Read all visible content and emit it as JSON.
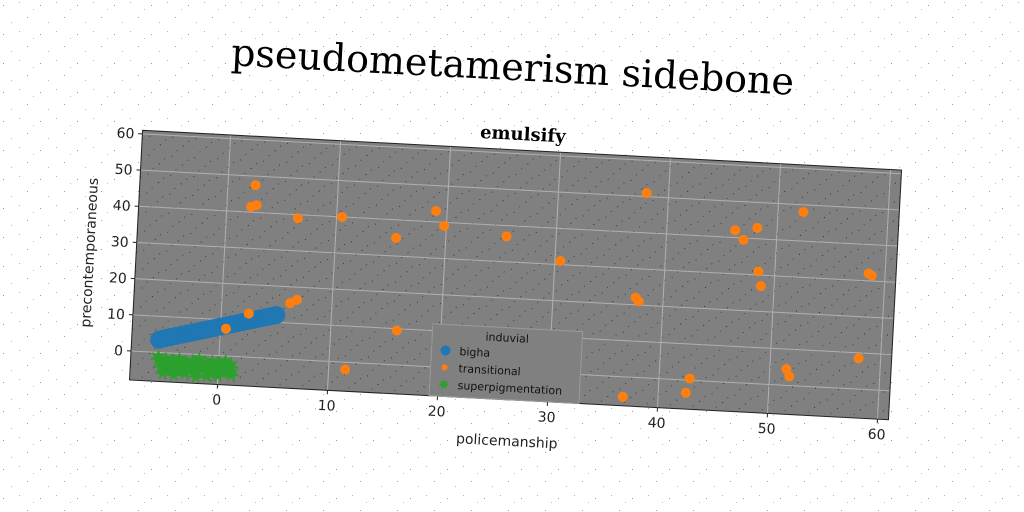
{
  "title": "pseudometamerism sidebone",
  "chart_data": {
    "type": "scatter",
    "title": "emulsify",
    "xlabel": "policemanship",
    "ylabel": "precontemporaneous",
    "xlim": [
      -8,
      61
    ],
    "ylim": [
      -8,
      61
    ],
    "xticks": [
      0,
      10,
      20,
      30,
      40,
      50,
      60
    ],
    "yticks": [
      0,
      10,
      20,
      30,
      40,
      50,
      60
    ],
    "grid": true,
    "legend": {
      "title": "induvial",
      "placement": "lower-center",
      "entries": [
        "bigha",
        "transitional",
        "superpigmentation"
      ]
    },
    "series": [
      {
        "name": "bigha",
        "marker": "circle-large",
        "color": "#1f77b4",
        "x": [
          -5.5,
          -5,
          -4.5,
          -4,
          -3.5,
          -3,
          -2.5,
          -2,
          -1.5,
          -1,
          -0.5,
          0,
          0.5,
          1,
          1.5,
          2,
          2.5,
          3,
          3.5,
          4,
          4.5,
          5
        ],
        "y": [
          3.5,
          4.0,
          4.4,
          4.8,
          5.2,
          5.6,
          6.0,
          6.4,
          6.8,
          7.2,
          7.6,
          8.0,
          8.4,
          8.8,
          9.2,
          9.6,
          10.0,
          10.4,
          10.8,
          11.2,
          11.6,
          12.0
        ]
      },
      {
        "name": "transitional",
        "marker": "circle",
        "color": "#ff7f0e",
        "x": [
          2.5,
          2.7,
          2.2,
          6.5,
          10.5,
          15.5,
          19,
          19.8,
          25.5,
          30.5,
          38,
          46.2,
          47,
          48.2,
          48.5,
          52.3,
          58.5,
          58.8,
          48.8,
          37.5,
          37.8,
          31,
          27.5,
          16,
          11.5,
          2.5,
          0.5,
          6.2,
          6.8,
          58,
          51.5,
          51.8,
          42.8,
          42.5,
          36.8,
          32
        ],
        "y": [
          47.5,
          42,
          41.5,
          39,
          40,
          35,
          43,
          39,
          37,
          31,
          51,
          42,
          39.5,
          43,
          31,
          48,
          32,
          31.5,
          27,
          22,
          21,
          10.5,
          7.5,
          9.5,
          -2,
          12,
          7.5,
          15.5,
          16.5,
          8.5,
          4.5,
          2.5,
          0.5,
          -3.5,
          -5.5,
          0.5
        ]
      },
      {
        "name": "superpigmentation",
        "marker": "star",
        "color": "#2ca02c",
        "x": [
          -5.5,
          -4.8,
          -4.2,
          -3.6,
          -3.0,
          -2.4,
          -1.8,
          -1.2,
          -0.6,
          0.0,
          0.6,
          1.1,
          -5.2,
          -4.5,
          -3.8,
          -3.2,
          -2.6,
          -2.0,
          -1.4,
          -0.8,
          -0.2,
          0.4,
          1.0,
          -5.0,
          -4.0,
          -3.0,
          -2.0,
          -1.0,
          0.0,
          1.2
        ],
        "y": [
          -1.5,
          -2.0,
          -2.4,
          -1.8,
          -2.6,
          -2.2,
          -1.6,
          -2.8,
          -2.0,
          -2.4,
          -1.8,
          -2.6,
          -3.5,
          -4.0,
          -3.6,
          -4.2,
          -3.8,
          -4.4,
          -3.6,
          -4.0,
          -4.6,
          -3.8,
          -4.2,
          -5.2,
          -5.6,
          -5.0,
          -5.8,
          -5.4,
          -5.2,
          -4.8
        ]
      }
    ]
  }
}
